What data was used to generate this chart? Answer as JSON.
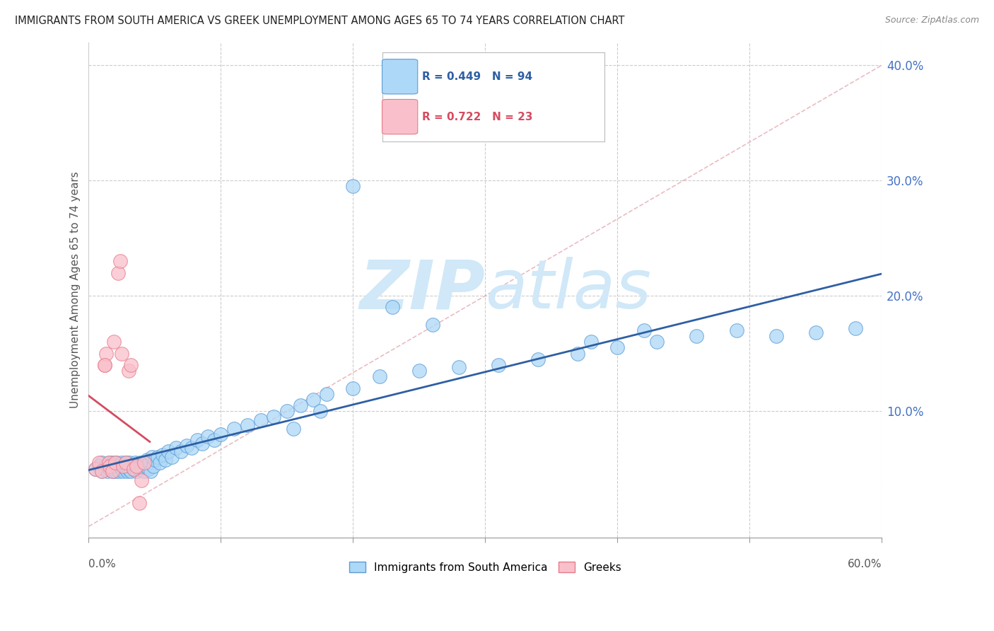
{
  "title": "IMMIGRANTS FROM SOUTH AMERICA VS GREEK UNEMPLOYMENT AMONG AGES 65 TO 74 YEARS CORRELATION CHART",
  "source": "Source: ZipAtlas.com",
  "ylabel": "Unemployment Among Ages 65 to 74 years",
  "xlim": [
    0.0,
    0.6
  ],
  "ylim": [
    -0.01,
    0.42
  ],
  "yticks": [
    0.0,
    0.1,
    0.2,
    0.3,
    0.4
  ],
  "ytick_labels": [
    "",
    "10.0%",
    "20.0%",
    "30.0%",
    "40.0%"
  ],
  "blue_R": 0.449,
  "blue_N": 94,
  "pink_R": 0.722,
  "pink_N": 23,
  "blue_color": "#ADD8F7",
  "pink_color": "#F9C0CB",
  "blue_edge_color": "#5B9BD5",
  "pink_edge_color": "#E87A8A",
  "blue_line_color": "#2E5FA3",
  "pink_line_color": "#D44C60",
  "diagonal_color": "#E0A0A8",
  "watermark_color": "#D0E8F8",
  "legend_label_blue": "Immigrants from South America",
  "legend_label_pink": "Greeks",
  "blue_x": [
    0.005,
    0.008,
    0.01,
    0.01,
    0.012,
    0.013,
    0.014,
    0.015,
    0.015,
    0.016,
    0.017,
    0.018,
    0.018,
    0.019,
    0.02,
    0.02,
    0.021,
    0.022,
    0.022,
    0.023,
    0.024,
    0.025,
    0.025,
    0.026,
    0.027,
    0.028,
    0.028,
    0.029,
    0.03,
    0.03,
    0.031,
    0.032,
    0.033,
    0.034,
    0.035,
    0.036,
    0.037,
    0.038,
    0.039,
    0.04,
    0.041,
    0.042,
    0.043,
    0.044,
    0.045,
    0.046,
    0.047,
    0.048,
    0.049,
    0.05,
    0.052,
    0.054,
    0.056,
    0.058,
    0.06,
    0.063,
    0.066,
    0.07,
    0.074,
    0.078,
    0.082,
    0.086,
    0.09,
    0.095,
    0.1,
    0.11,
    0.12,
    0.13,
    0.14,
    0.15,
    0.16,
    0.17,
    0.18,
    0.2,
    0.22,
    0.25,
    0.28,
    0.31,
    0.34,
    0.37,
    0.4,
    0.43,
    0.46,
    0.49,
    0.52,
    0.55,
    0.58,
    0.2,
    0.23,
    0.26,
    0.155,
    0.175,
    0.38,
    0.42
  ],
  "blue_y": [
    0.05,
    0.052,
    0.048,
    0.055,
    0.05,
    0.053,
    0.048,
    0.051,
    0.055,
    0.05,
    0.052,
    0.048,
    0.055,
    0.05,
    0.052,
    0.048,
    0.055,
    0.05,
    0.053,
    0.048,
    0.052,
    0.05,
    0.055,
    0.048,
    0.052,
    0.05,
    0.055,
    0.048,
    0.052,
    0.05,
    0.055,
    0.048,
    0.052,
    0.05,
    0.055,
    0.048,
    0.052,
    0.05,
    0.055,
    0.05,
    0.055,
    0.048,
    0.052,
    0.058,
    0.05,
    0.055,
    0.048,
    0.06,
    0.052,
    0.058,
    0.06,
    0.055,
    0.062,
    0.058,
    0.065,
    0.06,
    0.068,
    0.065,
    0.07,
    0.068,
    0.075,
    0.072,
    0.078,
    0.075,
    0.08,
    0.085,
    0.088,
    0.092,
    0.095,
    0.1,
    0.105,
    0.11,
    0.115,
    0.12,
    0.13,
    0.135,
    0.138,
    0.14,
    0.145,
    0.15,
    0.155,
    0.16,
    0.165,
    0.17,
    0.165,
    0.168,
    0.172,
    0.295,
    0.19,
    0.175,
    0.085,
    0.1,
    0.16,
    0.17
  ],
  "pink_x": [
    0.005,
    0.008,
    0.01,
    0.012,
    0.013,
    0.015,
    0.016,
    0.018,
    0.019,
    0.02,
    0.022,
    0.024,
    0.026,
    0.028,
    0.03,
    0.032,
    0.034,
    0.036,
    0.038,
    0.04,
    0.042,
    0.012,
    0.025
  ],
  "pink_y": [
    0.05,
    0.055,
    0.048,
    0.14,
    0.15,
    0.055,
    0.052,
    0.048,
    0.16,
    0.055,
    0.22,
    0.23,
    0.052,
    0.055,
    0.135,
    0.14,
    0.05,
    0.052,
    0.02,
    0.04,
    0.055,
    0.14,
    0.15
  ]
}
